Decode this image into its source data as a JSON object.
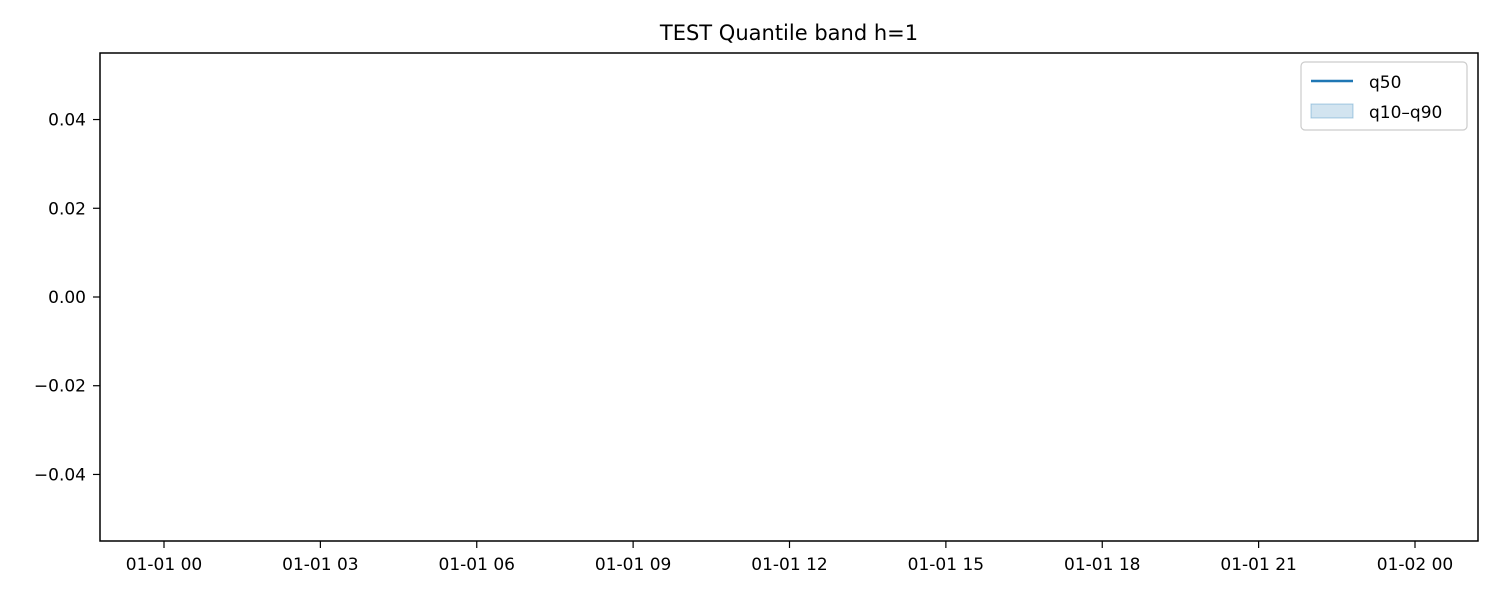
{
  "chart_data": {
    "type": "line",
    "title": "TEST Quantile band h=1",
    "xlabel": "",
    "ylabel": "",
    "x_tick_labels": [
      "01-01 00",
      "01-01 03",
      "01-01 06",
      "01-01 09",
      "01-01 12",
      "01-01 15",
      "01-01 18",
      "01-01 21",
      "01-02 00"
    ],
    "y_ticks": [
      0.04,
      0.02,
      0.0,
      -0.02,
      -0.04
    ],
    "y_tick_labels": [
      "0.04",
      "0.02",
      "0.00",
      "−0.02",
      "−0.04"
    ],
    "xlim": [
      "01-01 00",
      "01-02 00"
    ],
    "ylim": [
      -0.055,
      0.055
    ],
    "grid": false,
    "legend_position": "top-right",
    "series": [
      {
        "name": "q50",
        "kind": "line",
        "color": "#1f77b4",
        "values": []
      },
      {
        "name": "q10–q90",
        "kind": "band",
        "color": "#1f77b4",
        "values": []
      }
    ]
  }
}
